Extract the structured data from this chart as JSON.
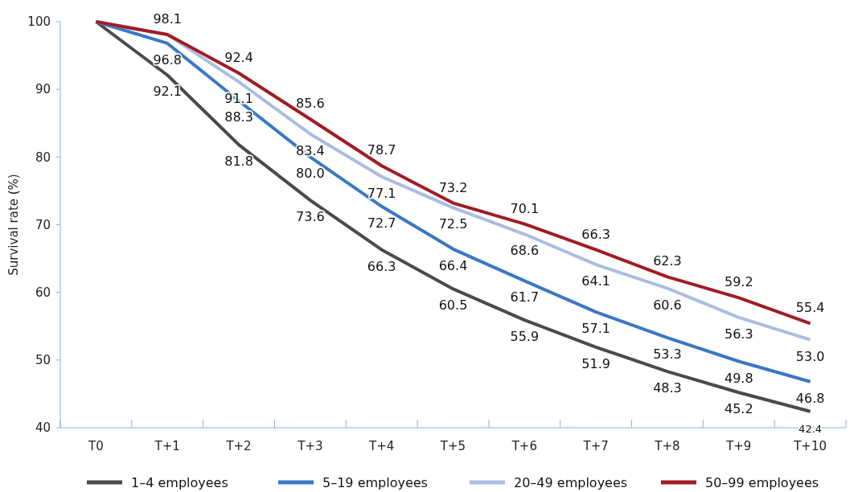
{
  "chart_data": {
    "type": "line",
    "ylabel": "Survival rate (%)",
    "categories": [
      "T0",
      "T+1",
      "T+2",
      "T+3",
      "T+4",
      "T+5",
      "T+6",
      "T+7",
      "T+8",
      "T+9",
      "T+10"
    ],
    "ylim": [
      40,
      100
    ],
    "yticks": [
      40,
      50,
      60,
      70,
      80,
      90,
      100
    ],
    "grid": false,
    "legend": "bottom",
    "marker": "none",
    "line_style": "solid",
    "series": [
      {
        "name": "1–4 employees",
        "color": "#4a4a4a",
        "values": [
          100,
          92.1,
          81.8,
          73.6,
          66.3,
          60.5,
          55.9,
          51.9,
          48.3,
          45.2,
          42.4
        ],
        "value_labels": [
          null,
          "92.1",
          "81.8",
          "73.6",
          "66.3",
          "60.5",
          "55.9",
          "51.9",
          "48.3",
          "45.2",
          "42.4"
        ]
      },
      {
        "name": "5–19 employees",
        "color": "#3a78c4",
        "values": [
          100,
          96.8,
          88.3,
          80.0,
          72.7,
          66.4,
          61.7,
          57.1,
          53.3,
          49.8,
          46.8
        ],
        "value_labels": [
          null,
          "96.8",
          "88.3",
          "80.0",
          "72.7",
          "66.4",
          "61.7",
          "57.1",
          "53.3",
          "49.8",
          "46.8"
        ]
      },
      {
        "name": "20–49 employees",
        "color": "#aabde2",
        "values": [
          100,
          98.1,
          91.1,
          83.4,
          77.1,
          72.5,
          68.6,
          64.1,
          60.6,
          56.3,
          53.0
        ],
        "value_labels": [
          null,
          null,
          "91.1",
          "83.4",
          "77.1",
          "72.5",
          "68.6",
          "64.1",
          "60.6",
          "56.3",
          "53.0"
        ]
      },
      {
        "name": "50–99 employees",
        "color": "#a01c24",
        "values": [
          100,
          98.1,
          92.4,
          85.6,
          78.7,
          73.2,
          70.1,
          66.3,
          62.3,
          59.2,
          55.4
        ],
        "value_labels": [
          null,
          "98.1",
          "92.4",
          "85.6",
          "78.7",
          "73.2",
          "70.1",
          "66.3",
          "62.3",
          "59.2",
          "55.4"
        ]
      }
    ]
  }
}
